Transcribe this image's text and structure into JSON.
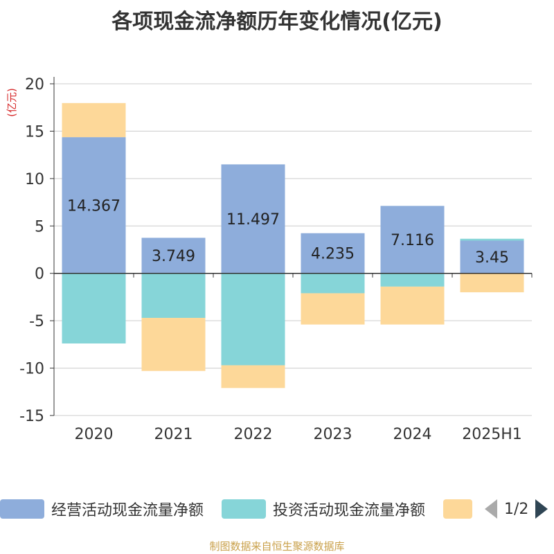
{
  "title": "各项现金流净额历年变化情况(亿元)",
  "source": "制图数据来自恒生聚源数据库",
  "pager": {
    "text": "1/2"
  },
  "chart_data": {
    "type": "bar",
    "stacked": true,
    "title": "各项现金流净额历年变化情况(亿元)",
    "ylabel": "(亿元)",
    "ylim": [
      -15,
      20
    ],
    "yticks": [
      20,
      15,
      10,
      5,
      0,
      -5,
      -10,
      -15
    ],
    "ytick_labels": [
      "20",
      "15",
      "10",
      "5",
      "0",
      "-5",
      "-10",
      "-15"
    ],
    "grid": true,
    "legend_position": "bottom",
    "categories": [
      "2020",
      "2021",
      "2022",
      "2023",
      "2024",
      "2025H1"
    ],
    "series": [
      {
        "name": "经营活动现金流量净额",
        "color": "#8eaddb",
        "values": [
          14.367,
          3.749,
          11.497,
          4.235,
          7.116,
          3.45
        ],
        "labels": [
          "14.367",
          "3.749",
          "11.497",
          "4.235",
          "7.116",
          "3.45"
        ]
      },
      {
        "name": "投资活动现金流量净额",
        "color": "#86d5d8",
        "values": [
          -7.4,
          -4.7,
          -9.7,
          -2.1,
          -1.4,
          0.2
        ]
      },
      {
        "name": "",
        "color": "#fdd899",
        "values": [
          3.6,
          -5.6,
          -2.4,
          -3.3,
          -4.0,
          -2.0
        ]
      }
    ]
  }
}
